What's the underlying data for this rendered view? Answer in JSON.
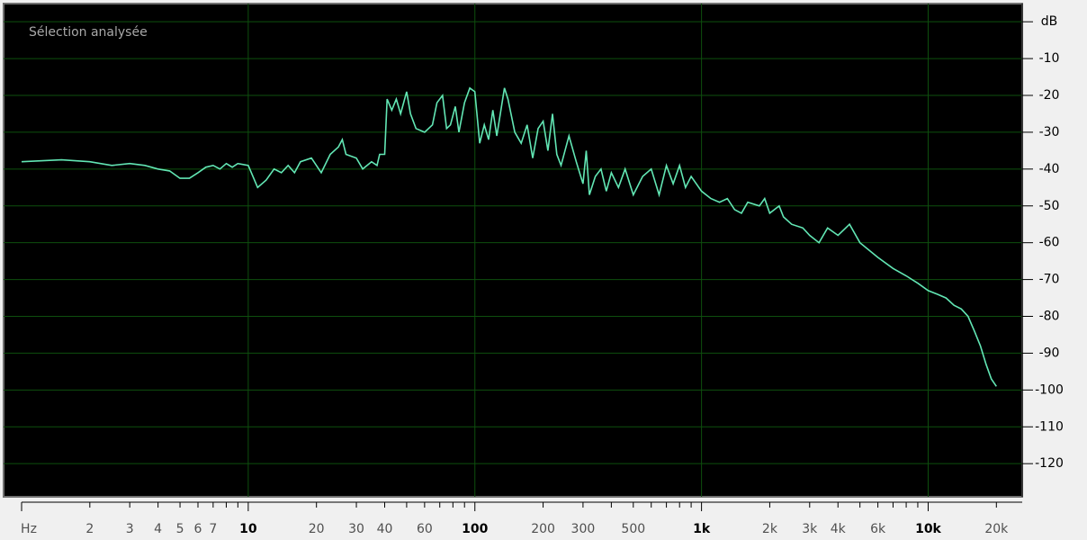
{
  "chart_data": {
    "type": "line",
    "title": "Sélection analysée",
    "log_x": true,
    "grid": true,
    "xlim": [
      1,
      26000
    ],
    "ylim": [
      -129,
      2
    ],
    "xticks": [
      {
        "value": 1,
        "label": "Hz"
      },
      2,
      3,
      4,
      5,
      6,
      7,
      10,
      20,
      30,
      40,
      60,
      100,
      200,
      300,
      500,
      {
        "value": 1000,
        "label": "1k"
      },
      {
        "value": 2000,
        "label": "2k"
      },
      {
        "value": 3000,
        "label": "3k"
      },
      {
        "value": 4000,
        "label": "4k"
      },
      {
        "value": 6000,
        "label": "6k"
      },
      {
        "value": 10000,
        "label": "10k"
      },
      {
        "value": 20000,
        "label": "20k"
      }
    ],
    "xminor_ticks": [
      8,
      9,
      50,
      70,
      80,
      90,
      400,
      600,
      700,
      800,
      900,
      5000,
      7000,
      8000,
      9000
    ],
    "xgrid": [
      10,
      100,
      1000,
      10000
    ],
    "yticks": [
      {
        "value": 0,
        "label": "dB"
      },
      -10,
      -20,
      -30,
      -40,
      -50,
      -60,
      -70,
      -80,
      -90,
      -100,
      -110,
      -120
    ],
    "series": [
      {
        "color": "#62e6b4",
        "x": [
          1,
          1.5,
          2,
          2.5,
          3,
          3.5,
          4,
          4.5,
          5,
          5.5,
          6,
          6.5,
          7,
          7.5,
          8,
          8.5,
          9,
          10,
          11,
          12,
          13,
          14,
          15,
          16,
          17,
          19,
          21,
          23,
          25,
          26,
          27,
          30,
          32,
          35,
          37,
          38,
          40,
          41,
          43,
          45,
          47,
          50,
          52,
          55,
          60,
          65,
          68,
          72,
          75,
          78,
          82,
          85,
          90,
          95,
          100,
          105,
          110,
          115,
          120,
          125,
          135,
          140,
          150,
          160,
          170,
          180,
          190,
          200,
          210,
          220,
          230,
          240,
          260,
          280,
          300,
          310,
          320,
          340,
          360,
          380,
          400,
          430,
          460,
          500,
          550,
          600,
          650,
          700,
          750,
          800,
          850,
          900,
          1000,
          1100,
          1200,
          1300,
          1400,
          1500,
          1600,
          1800,
          1900,
          2000,
          2200,
          2300,
          2500,
          2800,
          3000,
          3300,
          3600,
          4000,
          4500,
          5000,
          6000,
          7000,
          8000,
          9000,
          10000,
          11000,
          12000,
          13000,
          14000,
          15000,
          16000,
          17000,
          18000,
          19000,
          20000
        ],
        "values": [
          -38,
          -37.5,
          -38,
          -39,
          -38.5,
          -39,
          -40,
          -40.5,
          -42.5,
          -42.5,
          -41,
          -39.5,
          -39,
          -40,
          -38.5,
          -39.5,
          -38.5,
          -39,
          -45,
          -43,
          -40,
          -41,
          -39,
          -41,
          -38,
          -37,
          -41,
          -36,
          -34,
          -32,
          -36,
          -37,
          -40,
          -38,
          -39,
          -36,
          -36,
          -21,
          -24,
          -21,
          -25,
          -19,
          -25,
          -29,
          -30,
          -28,
          -22,
          -20,
          -29,
          -28,
          -23,
          -30,
          -22,
          -18,
          -19,
          -33,
          -28,
          -32,
          -24,
          -31,
          -18,
          -21,
          -30,
          -33,
          -28,
          -37,
          -29,
          -27,
          -35,
          -25,
          -36,
          -39,
          -31,
          -38,
          -44,
          -35,
          -47,
          -42,
          -40,
          -46,
          -41,
          -45,
          -40,
          -47,
          -42,
          -40,
          -47,
          -39,
          -44,
          -39,
          -45,
          -42,
          -46,
          -48,
          -49,
          -48,
          -51,
          -52,
          -49,
          -50,
          -48,
          -52,
          -50,
          -53,
          -55,
          -56,
          -58,
          -60,
          -56,
          -58,
          -55,
          -60,
          -64,
          -67,
          -69,
          -71,
          -73,
          -74,
          -75,
          -77,
          -78,
          -80,
          -84,
          -88,
          -93,
          -97,
          -99
        ]
      }
    ]
  }
}
